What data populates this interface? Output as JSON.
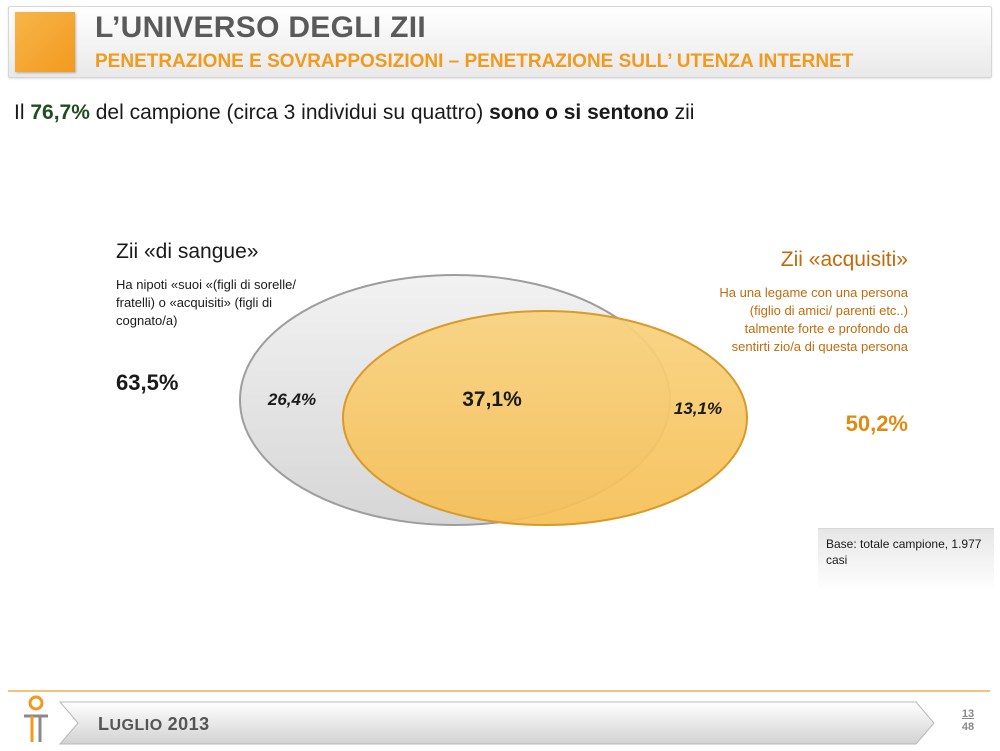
{
  "header": {
    "title": "L’UNIVERSO DEGLI ZII",
    "subtitle": "PENETRAZIONE E SOVRAPPOSIZIONI – PENETRAZIONE SULL’ UTENZA INTERNET"
  },
  "headline": {
    "part1": "Il ",
    "pct": "76,7%",
    "part2": " del campione (circa 3 individui su quattro) ",
    "bold": "sono o si sentono",
    "part3": " zii"
  },
  "venn": {
    "blood": {
      "title": "Zii «di sangue»",
      "description": "Ha nipoti «suoi «(figli di sorelle/ fratelli) o «acquisiti» (figli di cognato/a)",
      "percent": "63,5%",
      "only_percent": "26,4%",
      "color": "#e4e4e4"
    },
    "acquired": {
      "title": "Zii «acquisiti»",
      "description": "Ha una legame con una persona (figlio di amici/ parenti etc..) talmente forte e profondo da sentirti zio/a di questa persona",
      "percent": "50,2%",
      "only_percent": "13,1%",
      "color": "#f7c766"
    },
    "overlap_percent": "37,1%"
  },
  "base_note": "Base: totale campione, 1.977 casi",
  "footer": {
    "date_first": "L",
    "date_rest": "UGLIO",
    "year": "2013",
    "page_current": "13",
    "page_total": "48"
  }
}
